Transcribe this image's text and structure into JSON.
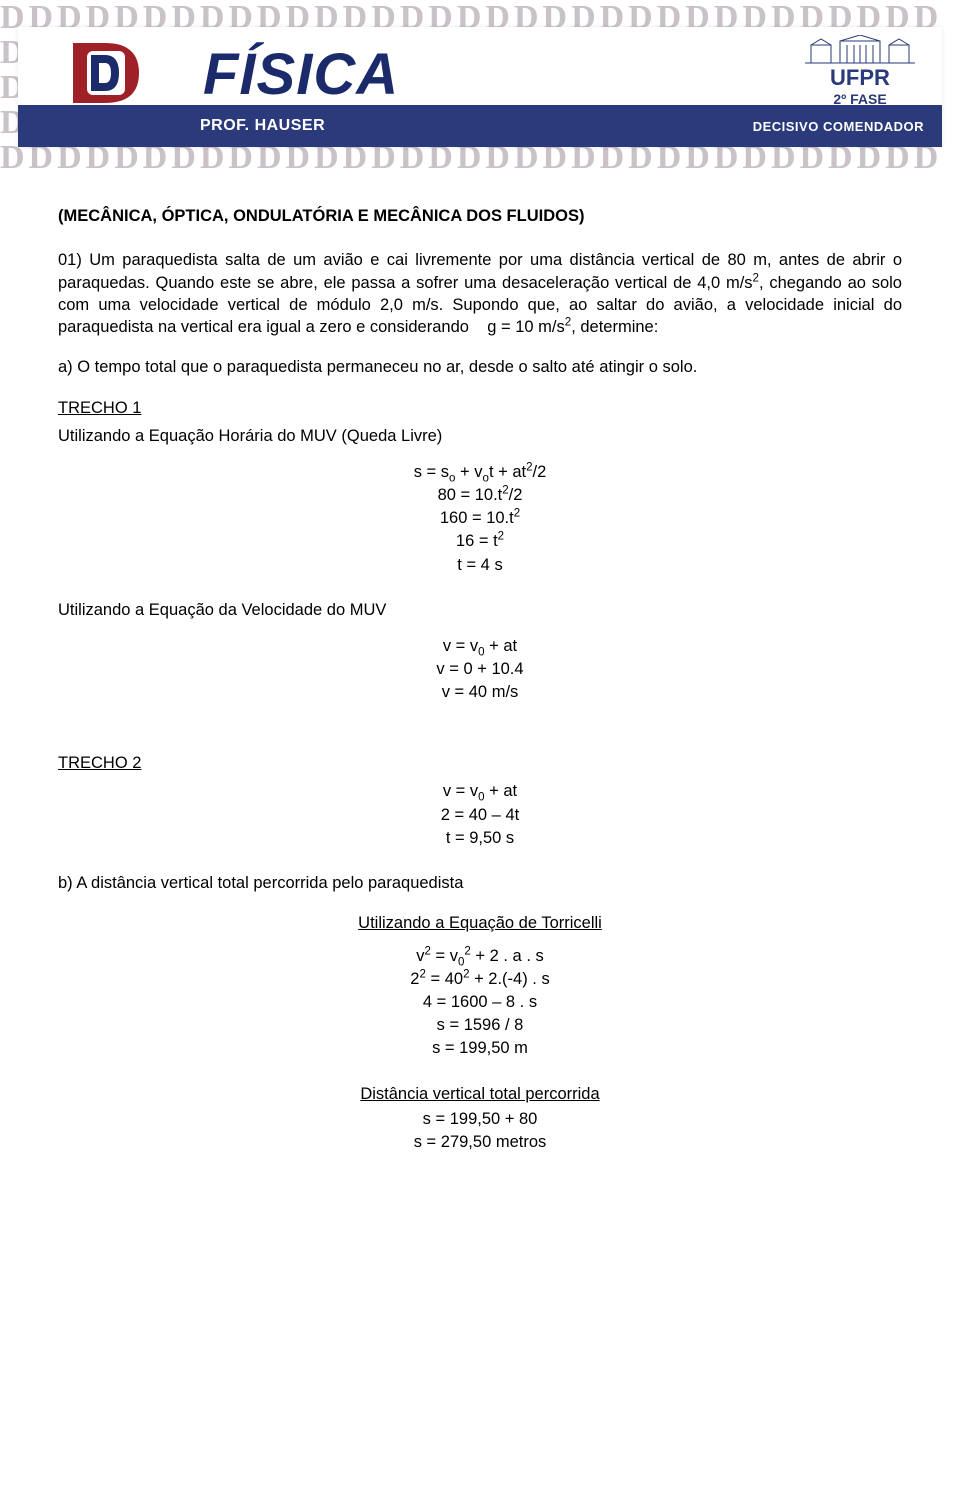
{
  "header": {
    "watermark_char": "D",
    "logo_label": "DECISIVO",
    "subject": "FÍSICA",
    "professor": "PROF. HAUSER",
    "comendador": "DECISIVO COMENDADOR",
    "university": "UFPR",
    "phase": "2º FASE",
    "colors": {
      "blue_bar": "#2a3a7a",
      "dark_blue": "#1a2a6a",
      "watermark": "#c9c2c8",
      "logo_red": "#a02028"
    }
  },
  "content": {
    "title": "(MECÂNICA, ÓPTICA, ONDULATÓRIA E MECÂNICA DOS FLUIDOS)",
    "problem_html": "01) Um paraquedista salta de um avião e cai livremente por uma distância vertical de 80 m, antes de abrir o paraquedas. Quando este se abre, ele passa a sofrer uma desaceleração vertical de 4,0 m/s<sup>2</sup>, chegando ao solo com uma velocidade vertical de módulo 2,0 m/s. Supondo que, ao saltar do avião, a velocidade inicial do paraquedista na vertical era igual a zero e considerando&nbsp;&nbsp;&nbsp;&nbsp;g = 10 m/s<sup>2</sup>, determine:",
    "part_a": "a) O tempo total que o paraquedista permaneceu no ar, desde o salto até atingir o solo.",
    "trecho1_label": "TRECHO 1",
    "trecho1_intro": "Utilizando a Equação Horária do MUV (Queda Livre)",
    "trecho1_eqs": [
      "s = s<sub>o</sub> + v<sub>o</sub>t + at<sup>2</sup>/2",
      "80 = 10.t<sup>2</sup>/2",
      "160 = 10.t<sup>2</sup>",
      "16 = t<sup>2</sup>",
      "t = 4 s"
    ],
    "trecho1_vel_intro": "Utilizando a Equação da Velocidade do MUV",
    "trecho1_vel_eqs": [
      "v = v<sub>0</sub> + at",
      "v = 0 + 10.4",
      "v = 40 m/s"
    ],
    "trecho2_label": "TRECHO 2",
    "trecho2_eqs": [
      "v = v<sub>0</sub> + at",
      "2 = 40 – 4t",
      "t = 9,50 s"
    ],
    "part_b": "b) A distância vertical total percorrida pelo paraquedista",
    "torricelli_label": "Utilizando a Equação de Torricelli",
    "torricelli_eqs": [
      "v<sup>2</sup> = v<sub>0</sub><sup>2</sup> + 2 . a . s",
      "2<sup>2</sup> = 40<sup>2</sup> + 2.(-4) . s",
      "4 = 1600 – 8 . s",
      "s = 1596 / 8",
      "s = 199,50 m"
    ],
    "dist_total_label": "Distância vertical total percorrida",
    "dist_total_eqs": [
      "s = 199,50 + 80",
      "s = 279,50 metros"
    ]
  }
}
